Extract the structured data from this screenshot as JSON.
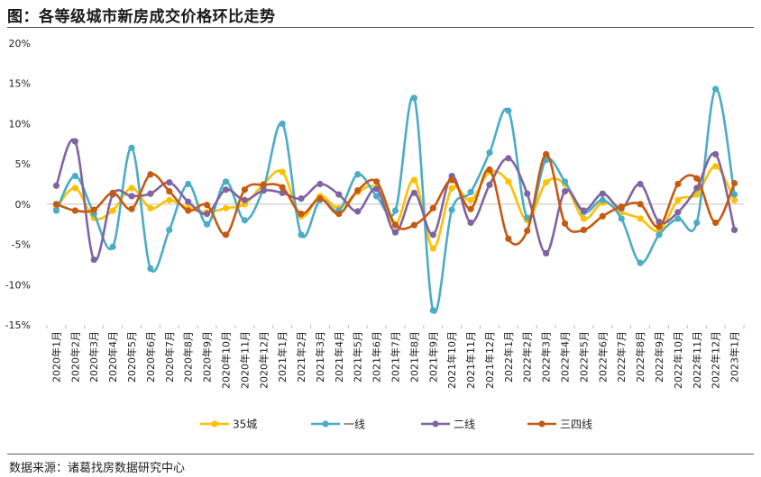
{
  "header": {
    "title": "图：各等级城市新房成交价格环比走势"
  },
  "footer": {
    "source": "数据来源：诸葛找房数据研究中心"
  },
  "chart_data": {
    "type": "line",
    "categories": [
      "2020年1月",
      "2020年2月",
      "2020年3月",
      "2020年4月",
      "2020年5月",
      "2020年6月",
      "2020年7月",
      "2020年8月",
      "2020年9月",
      "2020年10月",
      "2020年11月",
      "2020年12月",
      "2021年1月",
      "2021年2月",
      "2021年3月",
      "2021年4月",
      "2021年5月",
      "2021年6月",
      "2021年7月",
      "2021年8月",
      "2021年9月",
      "2021年10月",
      "2021年11月",
      "2021年12月",
      "2022年1月",
      "2022年2月",
      "2022年3月",
      "2022年4月",
      "2022年5月",
      "2022年6月",
      "2022年7月",
      "2022年8月",
      "2022年9月",
      "2022年10月",
      "2022年11月",
      "2022年12月",
      "2023年1月"
    ],
    "ylim": [
      -15,
      20
    ],
    "yticks": [
      -15,
      -10,
      -5,
      0,
      5,
      10,
      15,
      20
    ],
    "ytick_labels": [
      "-15%",
      "-10%",
      "-5%",
      "0%",
      "5%",
      "10%",
      "15%",
      "20%"
    ],
    "grid": false,
    "legend_position": "bottom",
    "series": [
      {
        "name": "35城",
        "color": "#FFC000",
        "values": [
          -0.5,
          2.0,
          -1.7,
          -0.8,
          2.0,
          -0.5,
          0.5,
          -0.5,
          -1.0,
          -0.5,
          0.0,
          2.5,
          4.0,
          -1.5,
          1.0,
          -0.5,
          1.5,
          2.0,
          -2.5,
          3.0,
          -5.5,
          2.0,
          0.5,
          4.0,
          2.8,
          -2.0,
          2.7,
          2.5,
          -1.8,
          0.2,
          -1.0,
          -1.8,
          -3.3,
          0.5,
          1.2,
          4.7,
          0.5
        ]
      },
      {
        "name": "一线",
        "color": "#4BACC6",
        "values": [
          -0.8,
          3.5,
          -1.2,
          -5.3,
          7.0,
          -8.0,
          -3.2,
          2.5,
          -2.5,
          2.8,
          -2.0,
          2.0,
          10.0,
          -3.8,
          0.5,
          -0.8,
          3.7,
          1.0,
          -0.8,
          13.2,
          -13.2,
          -0.7,
          1.5,
          6.4,
          11.6,
          -1.7,
          5.5,
          2.8,
          -1.0,
          0.5,
          -1.8,
          -7.3,
          -3.8,
          -1.8,
          -2.3,
          14.3,
          1.2
        ]
      },
      {
        "name": "二线",
        "color": "#8064A2",
        "values": [
          2.3,
          7.8,
          -6.9,
          1.2,
          1.0,
          1.3,
          2.7,
          0.3,
          -1.2,
          1.8,
          0.5,
          1.7,
          1.4,
          0.7,
          2.5,
          1.2,
          -0.9,
          1.9,
          -3.5,
          1.4,
          -3.8,
          3.5,
          -2.3,
          2.4,
          5.7,
          1.3,
          -6.1,
          1.6,
          -0.8,
          1.3,
          -0.5,
          2.5,
          -2.2,
          -1.0,
          2.0,
          6.2,
          -3.2
        ]
      },
      {
        "name": "三四线",
        "color": "#C55A11",
        "values": [
          0.0,
          -0.8,
          -0.7,
          1.4,
          -0.6,
          3.7,
          1.6,
          -0.8,
          -0.1,
          -3.8,
          1.8,
          2.4,
          2.1,
          -1.2,
          0.7,
          -1.2,
          1.7,
          2.8,
          -2.6,
          -2.6,
          -0.5,
          3.0,
          -0.6,
          4.3,
          -4.3,
          -3.3,
          6.2,
          -2.4,
          -3.2,
          -1.5,
          -0.3,
          0.0,
          -2.8,
          2.5,
          3.2,
          -2.3,
          2.6
        ]
      }
    ]
  }
}
